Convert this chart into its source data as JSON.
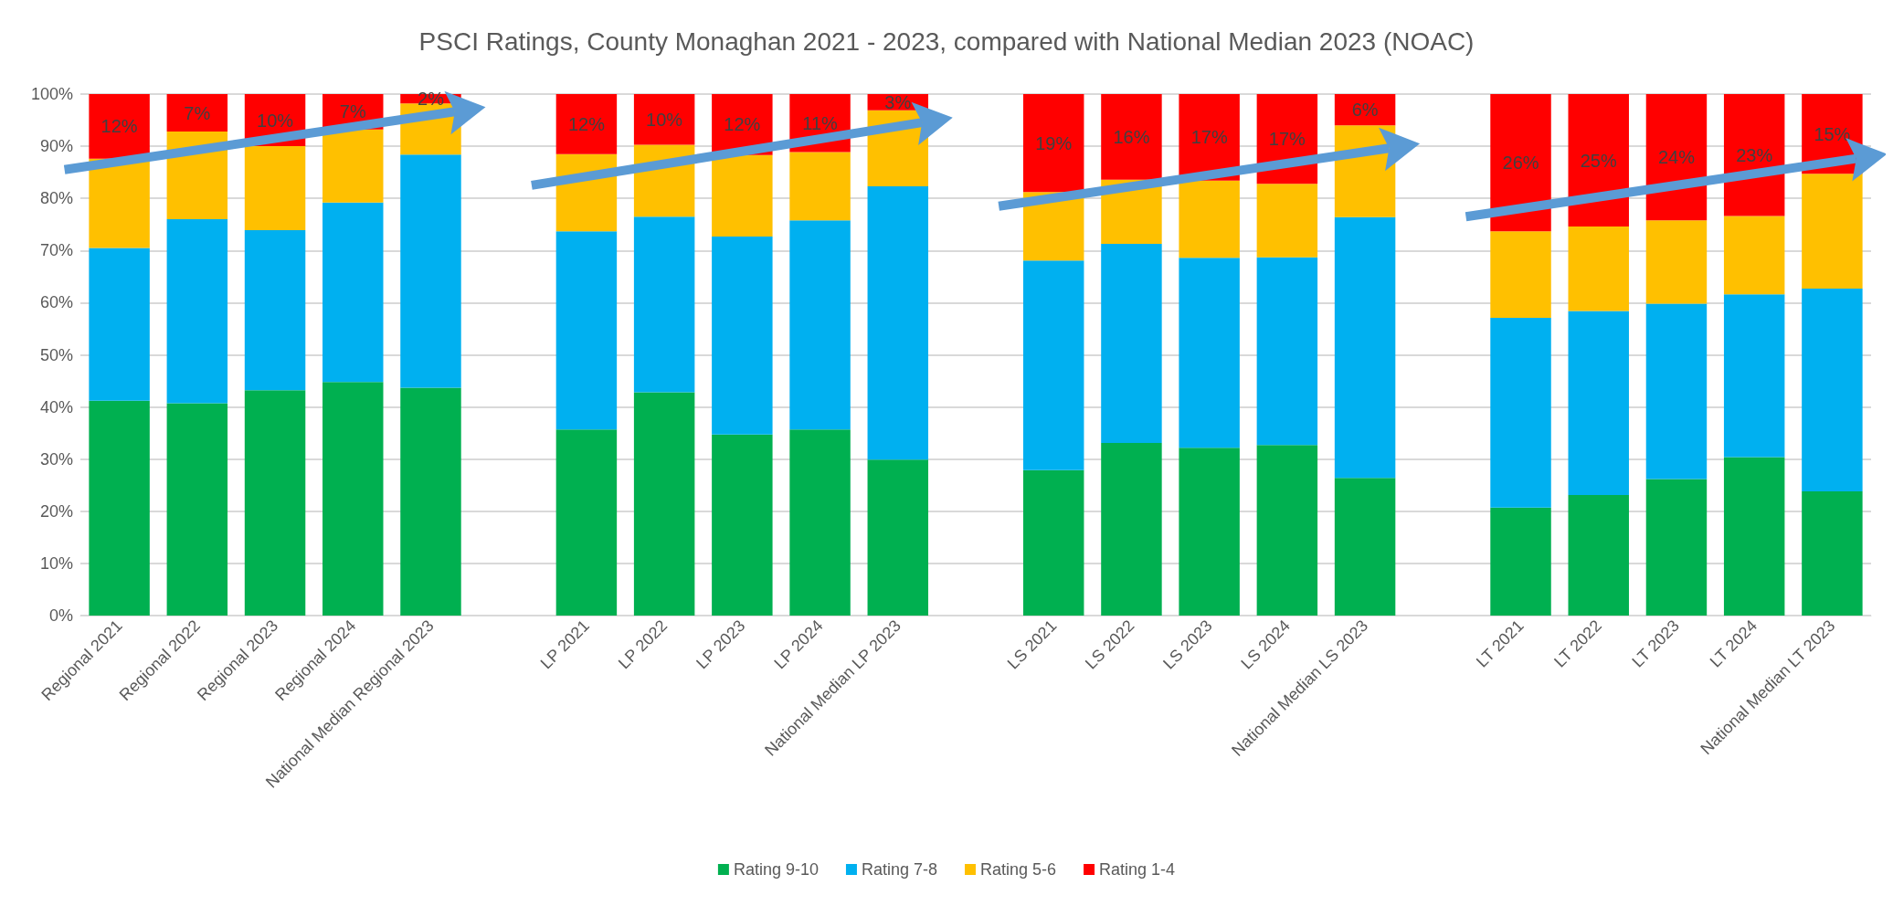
{
  "chart_data": {
    "type": "bar",
    "stacked": true,
    "title": "PSCI Ratings, County Monaghan 2021 - 2023, compared with National Median 2023 (NOAC)",
    "categories": [
      "Regional 2021",
      "Regional 2022",
      "Regional 2023",
      "Regional 2024",
      "National Median Regional 2023",
      null,
      "LP 2021",
      "LP 2022",
      "LP 2023",
      "LP 2024",
      "National Median LP 2023",
      null,
      "LS 2021",
      "LS 2022",
      "LS 2023",
      "LS 2024",
      "National Median LS 2023",
      null,
      "LT 2021",
      "LT 2022",
      "LT 2023",
      "LT 2024",
      "National Median LT 2023"
    ],
    "series": [
      {
        "name": "Rating 9-10",
        "color": "#00b050",
        "values": [
          41.2,
          40.7,
          43.2,
          44.8,
          43.7,
          null,
          35.7,
          42.8,
          34.7,
          35.7,
          29.9,
          null,
          27.9,
          33.1,
          32.2,
          32.7,
          26.4,
          null,
          20.7,
          23.1,
          26.2,
          30.4,
          23.8
        ]
      },
      {
        "name": "Rating 7-8",
        "color": "#00b0f0",
        "values": [
          29.3,
          35.3,
          30.7,
          34.4,
          44.7,
          null,
          38.0,
          33.7,
          38.0,
          40.1,
          52.4,
          null,
          40.2,
          38.2,
          36.4,
          36.0,
          50.0,
          null,
          36.4,
          35.3,
          33.6,
          31.2,
          38.9
        ]
      },
      {
        "name": "Rating 5-6",
        "color": "#ffc000",
        "values": [
          17.1,
          16.8,
          16.1,
          14.0,
          9.8,
          null,
          14.8,
          13.8,
          15.6,
          13.1,
          14.6,
          null,
          13.1,
          12.3,
          14.8,
          14.1,
          17.6,
          null,
          16.6,
          16.2,
          16.0,
          15.0,
          22.0
        ]
      },
      {
        "name": "Rating 1-4",
        "color": "#ff0000",
        "values": [
          12.4,
          7.2,
          10.0,
          6.8,
          1.8,
          null,
          11.5,
          9.7,
          11.7,
          11.1,
          3.1,
          null,
          18.8,
          16.4,
          16.6,
          17.2,
          6.0,
          null,
          26.3,
          25.4,
          24.2,
          23.4,
          15.3
        ],
        "value_labels": [
          "12%",
          "7%",
          "10%",
          "7%",
          "2%",
          null,
          "12%",
          "10%",
          "12%",
          "11%",
          "3%",
          null,
          "19%",
          "16%",
          "17%",
          "17%",
          "6%",
          null,
          "26%",
          "25%",
          "24%",
          "23%",
          "15%"
        ]
      }
    ],
    "ylim": [
      0,
      100
    ],
    "yticks": [
      {
        "value": 0,
        "label": "0%"
      },
      {
        "value": 10,
        "label": "10%"
      },
      {
        "value": 20,
        "label": "20%"
      },
      {
        "value": 30,
        "label": "30%"
      },
      {
        "value": 40,
        "label": "40%"
      },
      {
        "value": 50,
        "label": "50%"
      },
      {
        "value": 60,
        "label": "60%"
      },
      {
        "value": 70,
        "label": "70%"
      },
      {
        "value": 80,
        "label": "80%"
      },
      {
        "value": 90,
        "label": "90%"
      },
      {
        "value": 100,
        "label": "100%"
      }
    ],
    "grid": "y",
    "legend": "bottom"
  }
}
